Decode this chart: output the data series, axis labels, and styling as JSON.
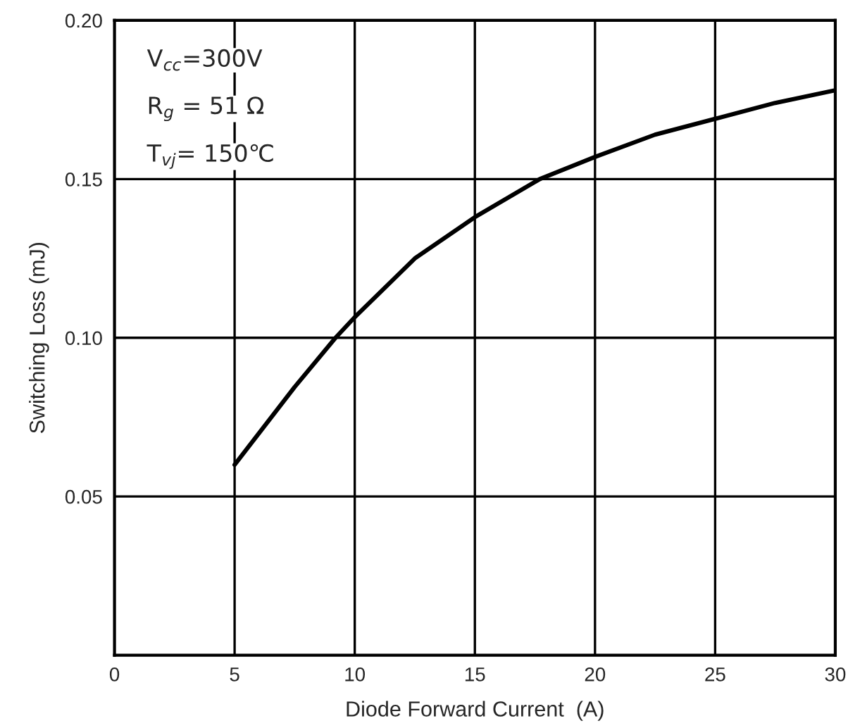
{
  "chart_data": {
    "type": "line",
    "xlabel": "Diode Forward Current  (A)",
    "ylabel": "Switching Loss (mJ)",
    "x": [
      5,
      7.5,
      9.2,
      10,
      12.5,
      15,
      17.7,
      20,
      22.5,
      25,
      27.5,
      30
    ],
    "series": [
      {
        "color": "#000000",
        "values": [
          0.06,
          0.0845,
          0.1,
          0.1065,
          0.125,
          0.138,
          0.15,
          0.157,
          0.164,
          0.169,
          0.174,
          0.178
        ]
      }
    ],
    "xlim": [
      0,
      30
    ],
    "xticks": [
      0,
      5,
      10,
      15,
      20,
      25,
      30
    ],
    "ylim": [
      0,
      0.2
    ],
    "yticks": [
      {
        "value": 0.05,
        "label": "0.05"
      },
      {
        "value": 0.1,
        "label": "0.10"
      },
      {
        "value": 0.15,
        "label": "0.15"
      },
      {
        "value": 0.2,
        "label": "0.20"
      }
    ],
    "grid": true,
    "marker": "none",
    "line_style": "solid",
    "annotations": [
      "V$_{cc}$=300V",
      "R$_{g}$ = 51 Ω",
      "T$_{vj}$= 150℃"
    ]
  }
}
